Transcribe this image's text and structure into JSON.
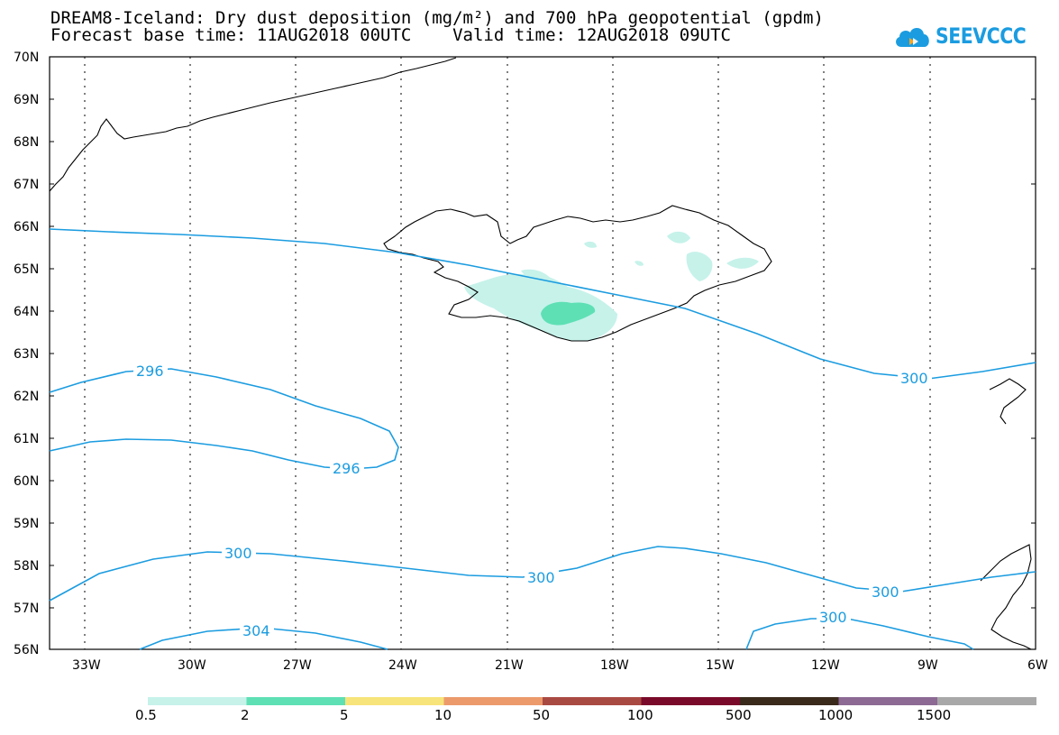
{
  "header": {
    "title_line1": "DREAM8-Iceland: Dry dust deposition (mg/m²) and 700 hPa geopotential (gpdm)",
    "title_line2": "Forecast base time: 11AUG2018 00UTC    Valid time: 12AUG2018 09UTC",
    "logo_text": "SEEVCCC"
  },
  "map": {
    "lat_labels": [
      "70N",
      "69N",
      "68N",
      "67N",
      "66N",
      "65N",
      "64N",
      "63N",
      "62N",
      "61N",
      "60N",
      "59N",
      "58N",
      "57N",
      "56N"
    ],
    "lon_labels": [
      "33W",
      "30W",
      "27W",
      "24W",
      "21W",
      "18W",
      "15W",
      "12W",
      "9W",
      "6W"
    ],
    "contour_labels": [
      "296",
      "296",
      "300",
      "300",
      "300",
      "300",
      "300",
      "304"
    ]
  },
  "legend": {
    "colors": [
      "#c6f2ea",
      "#5ee0b4",
      "#f7e47a",
      "#ec9a6c",
      "#a94a42",
      "#7a0a2a",
      "#3a2a1c",
      "#8c6a94",
      "#a8a8a8"
    ],
    "labels": [
      "0.5",
      "2",
      "5",
      "10",
      "50",
      "100",
      "500",
      "1000",
      "1500"
    ]
  },
  "colors": {
    "contour": "#1b9ce0",
    "coast": "#000000",
    "grid": "#000000"
  }
}
